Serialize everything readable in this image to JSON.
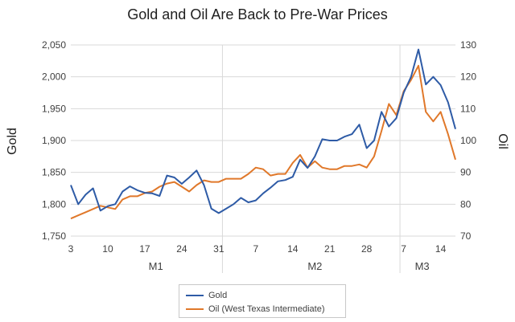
{
  "chart_data": {
    "type": "line",
    "title": "Gold and Oil Are Back to Pre-War Prices",
    "ylabel_left": "Gold",
    "ylabel_right": "Oil",
    "ylim_left": [
      1750,
      2050
    ],
    "ylim_right": [
      70,
      130
    ],
    "yticks_left": [
      "1,750",
      "1,800",
      "1,850",
      "1,900",
      "1,950",
      "2,000",
      "2,050"
    ],
    "yticks_right": [
      "70",
      "80",
      "90",
      "100",
      "110",
      "120",
      "130"
    ],
    "x_tick_labels": [
      {
        "index": 0,
        "label": "3"
      },
      {
        "index": 5,
        "label": "10"
      },
      {
        "index": 10,
        "label": "17"
      },
      {
        "index": 15,
        "label": "24"
      },
      {
        "index": 20,
        "label": "31"
      },
      {
        "index": 25,
        "label": "7"
      },
      {
        "index": 30,
        "label": "14"
      },
      {
        "index": 35,
        "label": "21"
      },
      {
        "index": 40,
        "label": "28"
      },
      {
        "index": 45,
        "label": "7"
      },
      {
        "index": 50,
        "label": "14"
      }
    ],
    "month_labels": [
      {
        "label": "M1",
        "center_index": 11.5
      },
      {
        "label": "M2",
        "center_index": 33
      },
      {
        "label": "M3",
        "center_index": 47.5
      }
    ],
    "month_dividers": [
      20.5,
      44.5
    ],
    "grid": "horizontal",
    "legend_position": "bottom",
    "series": [
      {
        "name": "Gold",
        "axis": "left",
        "color": "#2e5ba6",
        "values": [
          1830,
          1800,
          1815,
          1825,
          1790,
          1797,
          1800,
          1820,
          1828,
          1822,
          1818,
          1817,
          1813,
          1845,
          1842,
          1832,
          1842,
          1853,
          1830,
          1793,
          1786,
          1793,
          1800,
          1810,
          1803,
          1806,
          1817,
          1826,
          1836,
          1838,
          1843,
          1870,
          1857,
          1875,
          1902,
          1900,
          1900,
          1906,
          1910,
          1925,
          1888,
          1900,
          1945,
          1922,
          1935,
          1975,
          2000,
          2043,
          1988,
          2000,
          1987,
          1960,
          1918
        ]
      },
      {
        "name": "Oil (West Texas Intermediate)",
        "axis": "right",
        "color": "#e0782a",
        "values": [
          75.5,
          76.5,
          77.5,
          78.5,
          79.5,
          79,
          78.5,
          81.5,
          82.5,
          82.5,
          83.5,
          84,
          85.5,
          86.5,
          87,
          85.5,
          84,
          86,
          87.5,
          87,
          87,
          88,
          88,
          88,
          89.5,
          91.5,
          91,
          89,
          89.5,
          89.5,
          93,
          95.5,
          91.5,
          93.5,
          91.5,
          91,
          91,
          92,
          92,
          92.5,
          91.5,
          95,
          103,
          111.5,
          108,
          115.5,
          119,
          123.5,
          109,
          106,
          109,
          102,
          94
        ]
      }
    ]
  }
}
